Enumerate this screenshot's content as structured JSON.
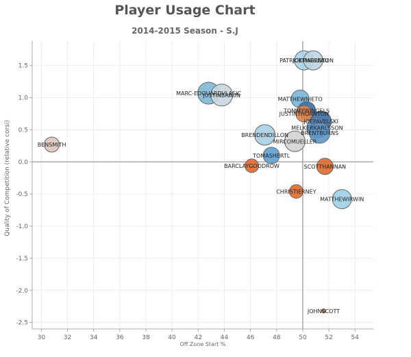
{
  "chart_data": {
    "type": "scatter",
    "title": "Player Usage Chart",
    "subtitle": "2014-2015 Season - S.J",
    "xlabel": "Off Zone Start %",
    "ylabel": "Quality of Competition (relative corsi)",
    "xlim": [
      29.3,
      55.4
    ],
    "ylim": [
      -2.6,
      1.88
    ],
    "xticks": [
      30,
      32,
      34,
      36,
      38,
      40,
      42,
      44,
      46,
      48,
      50,
      52,
      54
    ],
    "yticks": [
      1.5,
      1.0,
      0.5,
      0.0,
      -0.5,
      -1.0,
      -1.5,
      -2.0,
      -2.5
    ],
    "ytick_labels": [
      "1.5",
      "1.0",
      "0.5",
      "0.0",
      "-0.5",
      "-1.0",
      "-1.5",
      "-2.0",
      "-2.5"
    ],
    "reference_lines": {
      "x": 50,
      "y": 0
    },
    "grid": true,
    "points": [
      {
        "name": "BENSMITH",
        "x": 30.8,
        "y": 0.27,
        "size": 11,
        "color": "#dcc8bc"
      },
      {
        "name": "MARC-EDOUARDVLASIC",
        "x": 42.8,
        "y": 1.07,
        "size": 16,
        "color": "#7fb8d6"
      },
      {
        "name": "JUSTINBRAUN",
        "x": 43.8,
        "y": 1.04,
        "size": 16,
        "color": "#c9d6de"
      },
      {
        "name": "PATRICKMARLEAU",
        "x": 50.1,
        "y": 1.58,
        "size": 14,
        "color": "#a9d4e6"
      },
      {
        "name": "JOETHORNTON",
        "x": 50.8,
        "y": 1.58,
        "size": 14,
        "color": "#bcd6e2"
      },
      {
        "name": "MATTHEWNIETO",
        "x": 49.8,
        "y": 0.98,
        "size": 13,
        "color": "#7ab6d8"
      },
      {
        "name": "TOMMYWINGELS",
        "x": 50.3,
        "y": 0.8,
        "size": 13,
        "color": "#3d6fa8"
      },
      {
        "name": "JUSTINTHORNTON",
        "x": 50.1,
        "y": 0.75,
        "size": 12,
        "color": "#e0844a"
      },
      {
        "name": "JOEPAVELSKI",
        "x": 51.4,
        "y": 0.63,
        "size": 15,
        "color": "#3d6fa8"
      },
      {
        "name": "MELKERKARLSSON",
        "x": 51.1,
        "y": 0.53,
        "size": 15,
        "color": "#5a8fc4"
      },
      {
        "name": "BRENTBURNS",
        "x": 51.3,
        "y": 0.45,
        "size": 15,
        "color": "#5f97c8"
      },
      {
        "name": "BRENDENDILLON",
        "x": 47.1,
        "y": 0.42,
        "size": 15,
        "color": "#a9d0e4"
      },
      {
        "name": "MIRCOMUELLER",
        "x": 49.4,
        "y": 0.32,
        "size": 15,
        "color": "#d4d4d4"
      },
      {
        "name": "TOMASHERTL",
        "x": 47.6,
        "y": 0.1,
        "size": 12,
        "color": "#5f9fd0"
      },
      {
        "name": "BARCLAYGOODROW",
        "x": 46.1,
        "y": -0.06,
        "size": 10,
        "color": "#e06a2e"
      },
      {
        "name": "SCOTTHANNAN",
        "x": 51.7,
        "y": -0.07,
        "size": 12,
        "color": "#e06a2e"
      },
      {
        "name": "CHRISTIERNEY",
        "x": 49.5,
        "y": -0.46,
        "size": 10,
        "color": "#e06a2e"
      },
      {
        "name": "MATTHEWIRWIN",
        "x": 53.0,
        "y": -0.58,
        "size": 14,
        "color": "#9fd2e6"
      },
      {
        "name": "JOHNSCOTT",
        "x": 51.6,
        "y": -2.32,
        "size": 2,
        "color": "#e06a2e"
      }
    ]
  }
}
